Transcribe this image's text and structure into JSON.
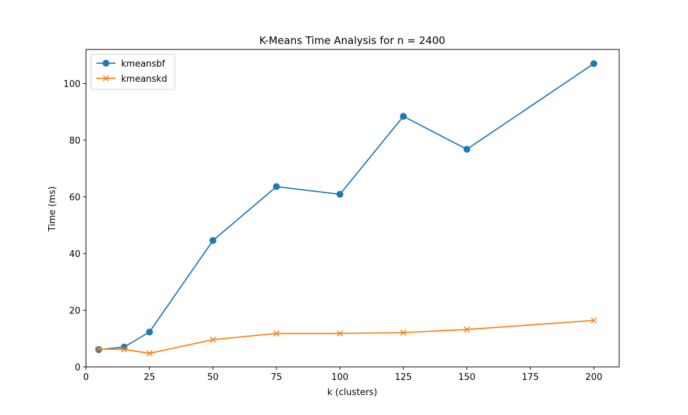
{
  "chart_data": {
    "type": "line",
    "title": "K-Means Time Analysis for n = 2400",
    "xlabel": "k (clusters)",
    "ylabel": "Time (ms)",
    "xlim": [
      0,
      210
    ],
    "ylim": [
      0,
      112
    ],
    "x_ticks": [
      0,
      25,
      50,
      75,
      100,
      125,
      150,
      175,
      200
    ],
    "y_ticks": [
      0,
      20,
      40,
      60,
      80,
      100
    ],
    "grid": false,
    "legend_position": "top-left",
    "x": [
      5,
      15,
      25,
      50,
      75,
      100,
      125,
      150,
      200
    ],
    "series": [
      {
        "name": "kmeansbf",
        "marker": "circle",
        "color": "#1f77b4",
        "values": [
          6.1,
          7.0,
          12.3,
          44.6,
          63.6,
          60.9,
          88.4,
          76.8,
          107.0
        ]
      },
      {
        "name": "kmeanskd",
        "marker": "x",
        "color": "#ff7f0e",
        "values": [
          6.3,
          6.2,
          4.8,
          9.6,
          11.8,
          11.8,
          12.1,
          13.2,
          16.4
        ]
      }
    ]
  }
}
